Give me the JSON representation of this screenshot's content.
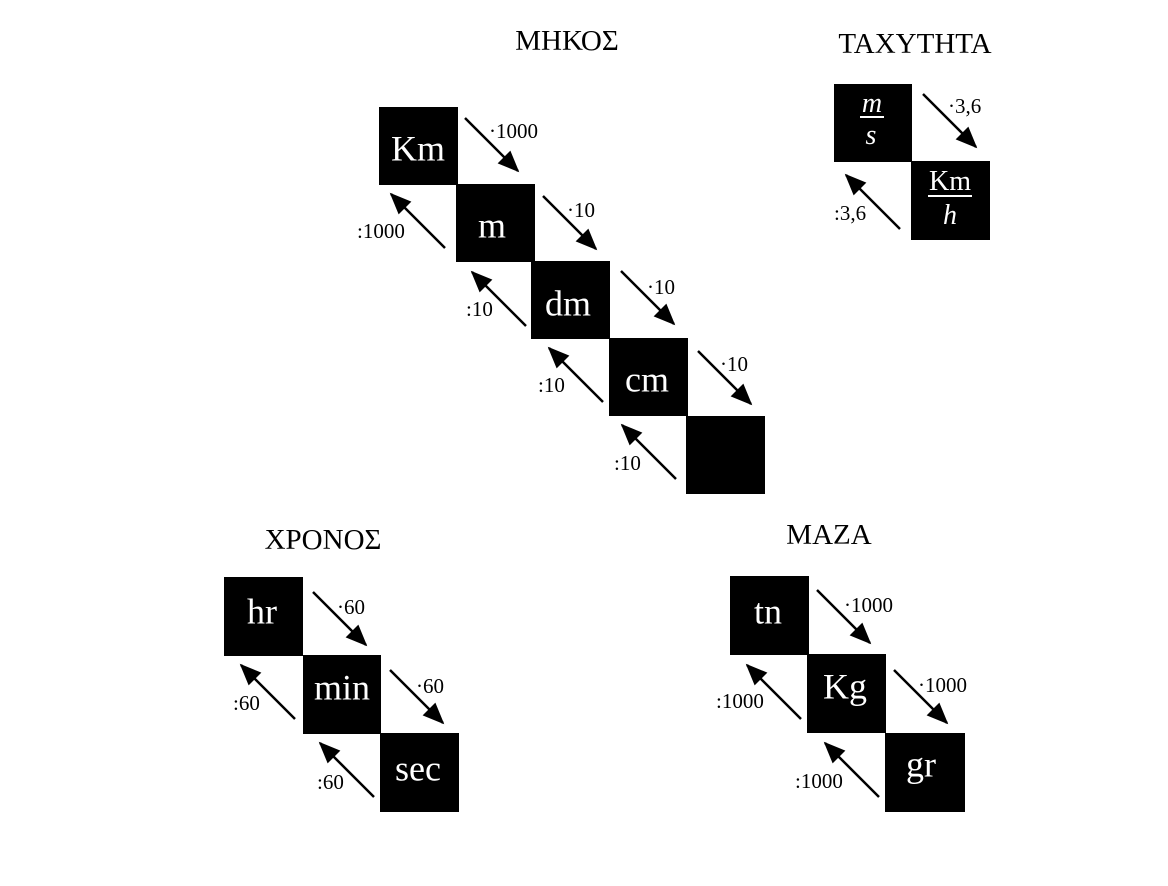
{
  "groups": {
    "length": {
      "title": "ΜΗΚΟΣ",
      "units": [
        "Km",
        "m",
        "dm",
        "cm",
        ""
      ],
      "down": [
        "·1000",
        "·10",
        "·10",
        "·10"
      ],
      "up": [
        ":1000",
        ":10",
        ":10",
        ":10"
      ]
    },
    "speed": {
      "title": "ΤΑΧΥΤΗΤΑ",
      "unit1": {
        "num": "m",
        "den": "s"
      },
      "unit2": {
        "num": "Km",
        "den": "h"
      },
      "down": "·3,6",
      "up": ":3,6"
    },
    "time": {
      "title": "ΧΡΟΝΟΣ",
      "units": [
        "hr",
        "min",
        "sec"
      ],
      "down": [
        "·60",
        "·60"
      ],
      "up": [
        ":60",
        ":60"
      ]
    },
    "mass": {
      "title": "ΜΑΖΑ",
      "units": [
        "tn",
        "Kg",
        "gr"
      ],
      "down": [
        "·1000",
        "·1000"
      ],
      "up": [
        ":1000",
        ":1000"
      ]
    }
  }
}
